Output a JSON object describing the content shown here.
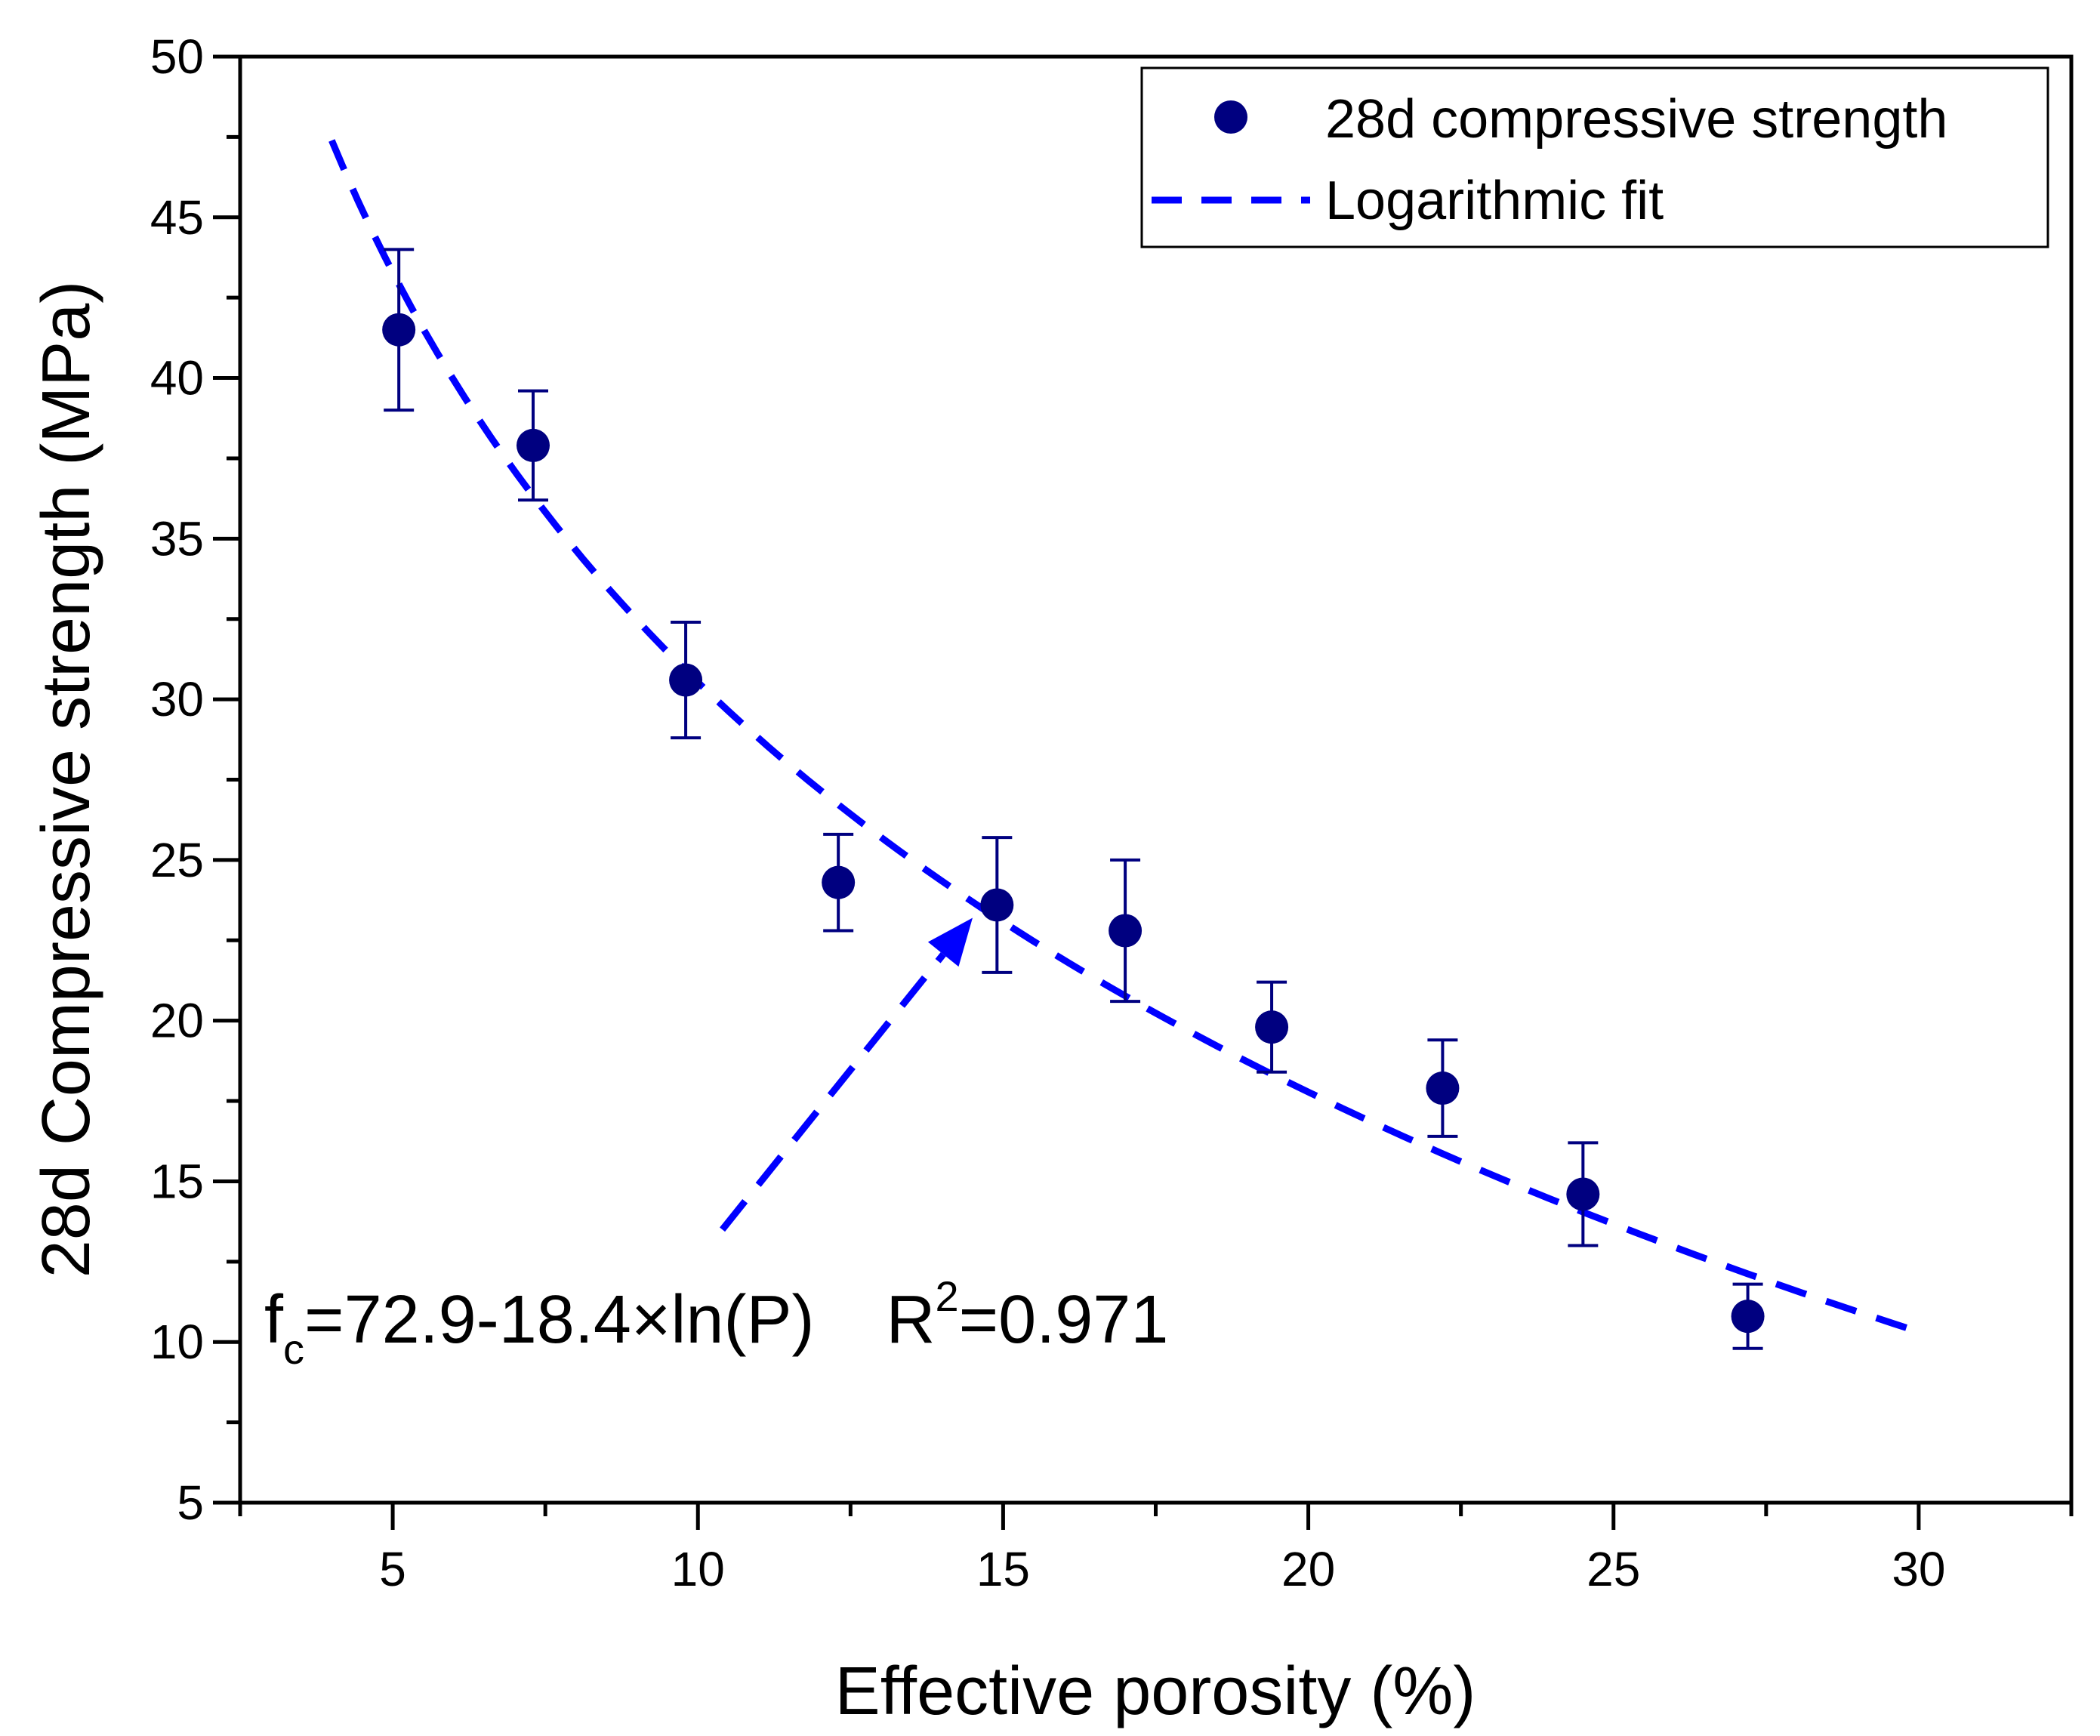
{
  "chart_data": {
    "type": "scatter",
    "title": "",
    "xlabel": "Effective porosity (%)",
    "ylabel": "28d Compressive strength (MPa)",
    "xlim": [
      2.5,
      32.5
    ],
    "ylim": [
      5,
      50
    ],
    "xticks": [
      5,
      10,
      15,
      20,
      25,
      30
    ],
    "yticks": [
      5,
      10,
      15,
      20,
      25,
      30,
      35,
      40,
      45,
      50
    ],
    "grid": false,
    "legend_position": "top-right",
    "series": [
      {
        "name": "28d compressive strength",
        "marker": "circle",
        "color": "#000080",
        "points": [
          {
            "x": 5.1,
            "y": 41.5,
            "err_low": 39.0,
            "err_high": 44.0
          },
          {
            "x": 7.3,
            "y": 37.9,
            "err_low": 36.2,
            "err_high": 39.6
          },
          {
            "x": 9.8,
            "y": 30.6,
            "err_low": 28.8,
            "err_high": 32.4
          },
          {
            "x": 12.3,
            "y": 24.3,
            "err_low": 22.8,
            "err_high": 25.8
          },
          {
            "x": 14.9,
            "y": 23.6,
            "err_low": 21.5,
            "err_high": 25.7
          },
          {
            "x": 17.0,
            "y": 22.8,
            "err_low": 20.6,
            "err_high": 25.0
          },
          {
            "x": 19.4,
            "y": 19.8,
            "err_low": 18.4,
            "err_high": 21.2
          },
          {
            "x": 22.2,
            "y": 17.9,
            "err_low": 16.4,
            "err_high": 19.4
          },
          {
            "x": 24.5,
            "y": 14.6,
            "err_low": 13.0,
            "err_high": 16.2
          },
          {
            "x": 27.2,
            "y": 10.8,
            "err_low": 9.8,
            "err_high": 11.8
          }
        ]
      },
      {
        "name": "Logarithmic fit",
        "line_style": "dashed",
        "color": "#0000ff",
        "equation": {
          "a": 72.9,
          "b": -18.4,
          "form": "a + b*ln(x)"
        },
        "x_range": [
          4,
          30
        ]
      }
    ],
    "annotation": {
      "equation_text": {
        "f": "f",
        "sub": "c",
        "body": "=72.9-18.4×ln(P)",
        "r": "R",
        "sup": "2",
        "r_value": "=0.971"
      },
      "arrow": {
        "from": [
          10.4,
          13.5
        ],
        "to": [
          14.5,
          23.2
        ]
      }
    }
  }
}
